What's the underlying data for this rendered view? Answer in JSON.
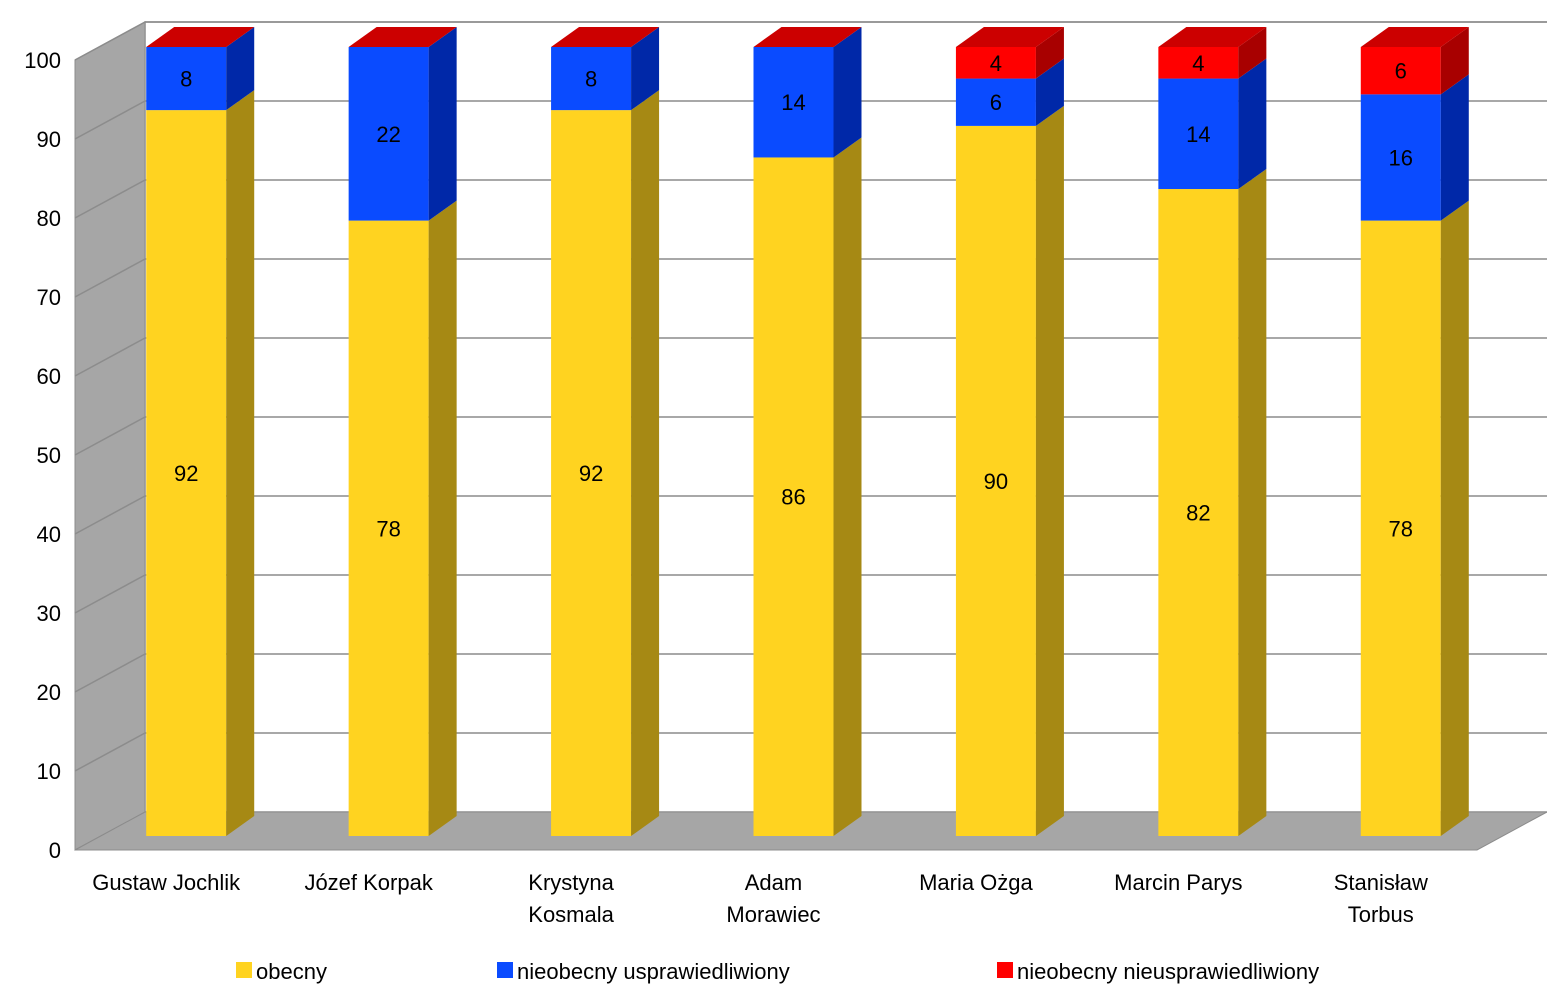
{
  "chart_data": {
    "type": "bar",
    "stacked": true,
    "three_d": true,
    "categories": [
      [
        "Gustaw Jochlik"
      ],
      [
        "Józef Korpak"
      ],
      [
        "Krystyna",
        "Kosmala"
      ],
      [
        "Adam",
        "Morawiec"
      ],
      [
        "Maria Ożga"
      ],
      [
        "Marcin Parys"
      ],
      [
        "Stanisław",
        "Torbus"
      ]
    ],
    "series": [
      {
        "name": "obecny",
        "values": [
          92,
          78,
          92,
          86,
          90,
          82,
          78
        ],
        "color": "#FFD320",
        "side_color": "#A68914"
      },
      {
        "name": "nieobecny usprawiedliwiony",
        "values": [
          8,
          22,
          8,
          14,
          6,
          14,
          16
        ],
        "color": "#0A4BFF",
        "side_color": "#0028A8"
      },
      {
        "name": "nieobecny nieusprawiedliwiony",
        "values": [
          0,
          0,
          0,
          0,
          4,
          4,
          6
        ],
        "color": "#FF0000",
        "side_color": "#A80000"
      }
    ],
    "ylim": [
      0,
      100
    ],
    "yticks": [
      0,
      10,
      20,
      30,
      40,
      50,
      60,
      70,
      80,
      90,
      100
    ],
    "grid": true,
    "legend": "bottom",
    "title": "",
    "xlabel": "",
    "ylabel": ""
  }
}
